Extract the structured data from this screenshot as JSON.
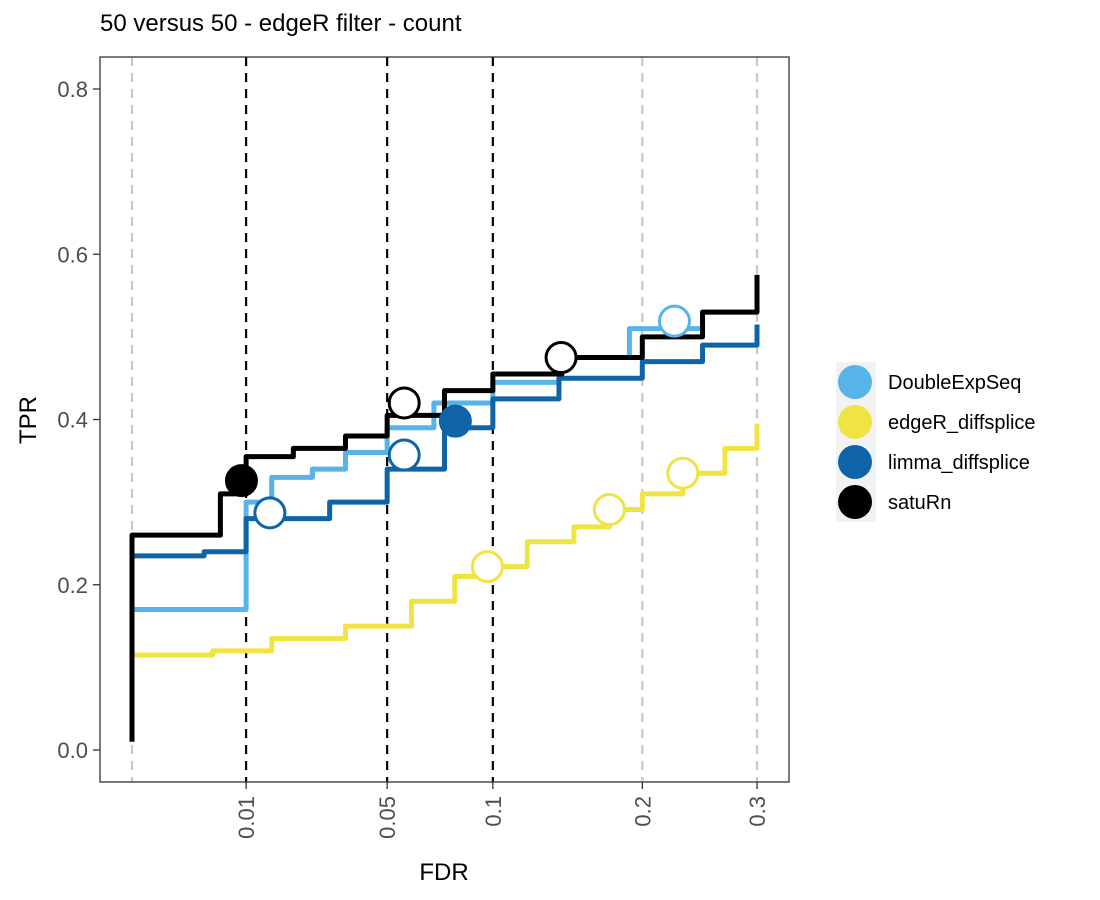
{
  "chart_data": {
    "type": "line",
    "title": "50 versus 50 - edgeR filter - count",
    "xlabel": "FDR",
    "ylabel": "TPR",
    "xscale": "sqrt",
    "xlim": [
      0.0,
      0.3
    ],
    "ylim": [
      0.0,
      0.8
    ],
    "x_ticks": [
      0.01,
      0.05,
      0.1,
      0.2,
      0.3
    ],
    "x_tick_labels": [
      "0.01",
      "0.05",
      "0.1",
      "0.2",
      "0.3"
    ],
    "y_ticks": [
      0.0,
      0.2,
      0.4,
      0.6,
      0.8
    ],
    "y_tick_labels": [
      "0.0",
      "0.2",
      "0.4",
      "0.6",
      "0.8"
    ],
    "grid": false,
    "legend_position": "right",
    "threshold_lines_black": [
      0.01,
      0.05,
      0.1
    ],
    "threshold_lines_gray": [
      0.0,
      0.2,
      0.3
    ],
    "series": [
      {
        "name": "DoubleExpSeq",
        "color": "#56B4E9",
        "points": [
          [
            0.0,
            0.17
          ],
          [
            0.01,
            0.17
          ],
          [
            0.01,
            0.3
          ],
          [
            0.015,
            0.33
          ],
          [
            0.025,
            0.34
          ],
          [
            0.035,
            0.36
          ],
          [
            0.05,
            0.39
          ],
          [
            0.07,
            0.42
          ],
          [
            0.1,
            0.445
          ],
          [
            0.14,
            0.475
          ],
          [
            0.19,
            0.51
          ],
          [
            0.25,
            0.53
          ],
          [
            0.3,
            0.56
          ]
        ],
        "thresholds": [
          {
            "fdr": 0.226,
            "tpr": 0.519,
            "filled": false
          }
        ]
      },
      {
        "name": "edgeR_diffsplice",
        "color": "#F0E442",
        "points": [
          [
            0.0,
            0.115
          ],
          [
            0.005,
            0.12
          ],
          [
            0.015,
            0.135
          ],
          [
            0.035,
            0.15
          ],
          [
            0.06,
            0.18
          ],
          [
            0.08,
            0.21
          ],
          [
            0.097,
            0.222
          ],
          [
            0.12,
            0.252
          ],
          [
            0.15,
            0.27
          ],
          [
            0.175,
            0.291
          ],
          [
            0.2,
            0.31
          ],
          [
            0.233,
            0.335
          ],
          [
            0.27,
            0.365
          ],
          [
            0.3,
            0.395
          ]
        ],
        "thresholds": [
          {
            "fdr": 0.097,
            "tpr": 0.222,
            "filled": false
          },
          {
            "fdr": 0.175,
            "tpr": 0.291,
            "filled": false
          },
          {
            "fdr": 0.233,
            "tpr": 0.335,
            "filled": false
          }
        ]
      },
      {
        "name": "limma_diffsplice",
        "color": "#0F64A8",
        "points": [
          [
            0.0,
            0.235
          ],
          [
            0.004,
            0.24
          ],
          [
            0.01,
            0.24
          ],
          [
            0.01,
            0.28
          ],
          [
            0.03,
            0.3
          ],
          [
            0.05,
            0.34
          ],
          [
            0.075,
            0.39
          ],
          [
            0.1,
            0.425
          ],
          [
            0.14,
            0.45
          ],
          [
            0.2,
            0.47
          ],
          [
            0.25,
            0.49
          ],
          [
            0.3,
            0.515
          ]
        ],
        "thresholds": [
          {
            "fdr": 0.0146,
            "tpr": 0.287,
            "filled": false
          },
          {
            "fdr": 0.0569,
            "tpr": 0.357,
            "filled": false
          },
          {
            "fdr": 0.0803,
            "tpr": 0.398,
            "filled": true
          }
        ]
      },
      {
        "name": "satuRn",
        "color": "#000000",
        "points": [
          [
            0.0,
            0.01
          ],
          [
            0.0,
            0.26
          ],
          [
            0.004,
            0.26
          ],
          [
            0.006,
            0.31
          ],
          [
            0.009,
            0.33
          ],
          [
            0.01,
            0.355
          ],
          [
            0.02,
            0.365
          ],
          [
            0.035,
            0.38
          ],
          [
            0.05,
            0.405
          ],
          [
            0.075,
            0.435
          ],
          [
            0.1,
            0.455
          ],
          [
            0.142,
            0.475
          ],
          [
            0.2,
            0.5
          ],
          [
            0.25,
            0.53
          ],
          [
            0.3,
            0.575
          ]
        ],
        "thresholds": [
          {
            "fdr": 0.0092,
            "tpr": 0.326,
            "filled": true
          },
          {
            "fdr": 0.0569,
            "tpr": 0.42,
            "filled": false
          },
          {
            "fdr": 0.1414,
            "tpr": 0.475,
            "filled": false
          }
        ]
      }
    ]
  }
}
